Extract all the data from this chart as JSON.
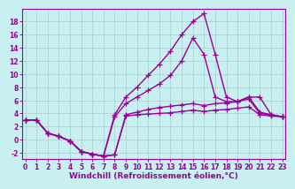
{
  "bg_color": "#c8f0f0",
  "line_color": "#990099",
  "marker": "+",
  "markersize": 5,
  "linewidth": 1.0,
  "xlim": [
    -0.3,
    23.3
  ],
  "ylim": [
    -3,
    20
  ],
  "xticks": [
    0,
    1,
    2,
    3,
    4,
    5,
    6,
    7,
    8,
    9,
    10,
    11,
    12,
    13,
    14,
    15,
    16,
    17,
    18,
    19,
    20,
    21,
    22,
    23
  ],
  "yticks": [
    -2,
    0,
    2,
    4,
    6,
    8,
    10,
    12,
    14,
    16,
    18
  ],
  "xlabel": "Windchill (Refroidissement éolien,°C)",
  "xlabel_fontsize": 6.5,
  "tick_fontsize": 5.5,
  "series": [
    [
      3.0,
      3.0,
      1.0,
      0.5,
      -0.2,
      -1.8,
      -2.2,
      -2.5,
      -2.3,
      3.6,
      3.8,
      3.9,
      4.0,
      4.1,
      4.3,
      4.5,
      4.3,
      4.5,
      4.6,
      4.8,
      5.0,
      3.8,
      3.6,
      3.5
    ],
    [
      3.0,
      3.0,
      1.0,
      0.5,
      -0.2,
      -1.8,
      -2.2,
      -2.5,
      -2.3,
      3.8,
      4.2,
      4.6,
      4.9,
      5.1,
      5.3,
      5.5,
      5.2,
      5.5,
      5.6,
      5.8,
      6.2,
      4.0,
      3.8,
      3.5
    ],
    [
      3.0,
      3.0,
      1.0,
      0.5,
      -0.2,
      -1.8,
      -2.2,
      -2.5,
      3.5,
      5.5,
      6.5,
      7.5,
      8.5,
      9.8,
      12.0,
      15.5,
      13.0,
      6.5,
      5.8,
      5.8,
      6.5,
      4.2,
      3.8,
      3.5
    ],
    [
      3.0,
      3.0,
      1.0,
      0.5,
      -0.2,
      -1.8,
      -2.2,
      -2.5,
      3.8,
      6.5,
      8.0,
      9.8,
      11.5,
      13.5,
      16.0,
      18.0,
      19.2,
      13.0,
      6.5,
      5.8,
      6.5,
      6.5,
      3.8,
      3.5
    ]
  ]
}
